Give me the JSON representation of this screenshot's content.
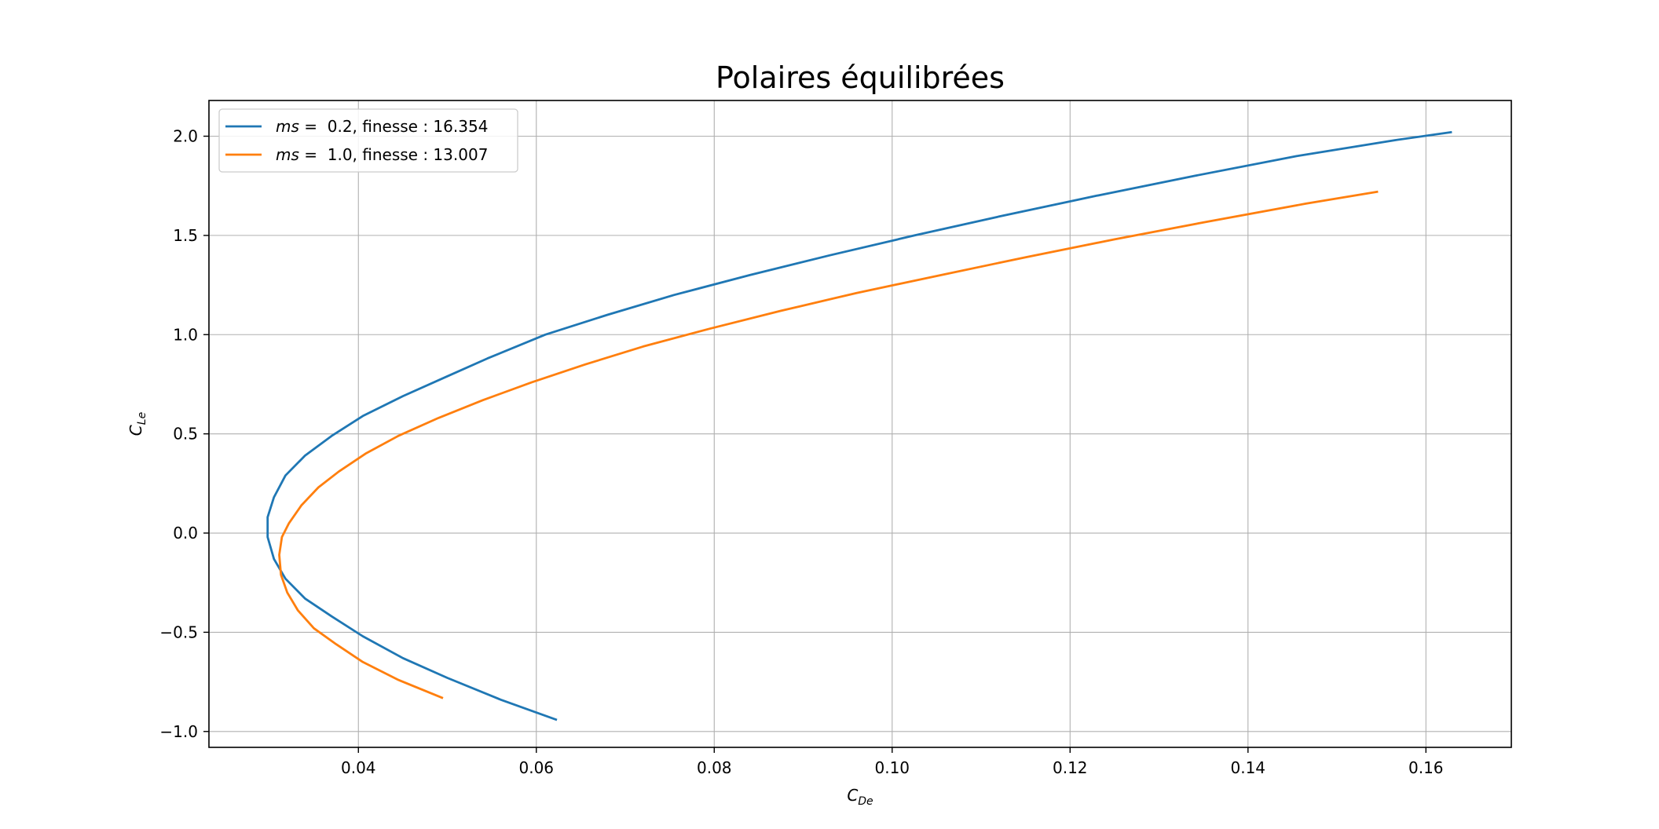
{
  "chart_data": {
    "type": "line",
    "title": "Polaires équilibrées",
    "xlabel_main": "C",
    "xlabel_sub": "De",
    "ylabel_main": "C",
    "ylabel_sub": "Le",
    "xlim": [
      0.0232,
      0.1696
    ],
    "ylim": [
      -1.08,
      2.18
    ],
    "xticks": [
      0.04,
      0.06,
      0.08,
      0.1,
      0.12,
      0.14,
      0.16
    ],
    "xtick_labels": [
      "0.04",
      "0.06",
      "0.08",
      "0.10",
      "0.12",
      "0.14",
      "0.16"
    ],
    "yticks": [
      -1.0,
      -0.5,
      0.0,
      0.5,
      1.0,
      1.5,
      2.0
    ],
    "ytick_labels": [
      "−1.0",
      "−0.5",
      "0.0",
      "0.5",
      "1.0",
      "1.5",
      "2.0"
    ],
    "grid": true,
    "legend_position": "top-left",
    "series": [
      {
        "name": "ms =  0.2, finesse : 16.354",
        "legend_var": "ms",
        "legend_rest": " =  0.2, finesse : 16.354",
        "color": "#1f77b4",
        "points": [
          [
            0.0622,
            -0.94
          ],
          [
            0.056,
            -0.84
          ],
          [
            0.05,
            -0.73
          ],
          [
            0.045,
            -0.63
          ],
          [
            0.0405,
            -0.52
          ],
          [
            0.037,
            -0.42
          ],
          [
            0.034,
            -0.33
          ],
          [
            0.0318,
            -0.23
          ],
          [
            0.0305,
            -0.13
          ],
          [
            0.0298,
            -0.02
          ],
          [
            0.0298,
            0.08
          ],
          [
            0.0305,
            0.18
          ],
          [
            0.0318,
            0.29
          ],
          [
            0.034,
            0.39
          ],
          [
            0.037,
            0.49
          ],
          [
            0.0405,
            0.59
          ],
          [
            0.045,
            0.69
          ],
          [
            0.05,
            0.79
          ],
          [
            0.0545,
            0.88
          ],
          [
            0.061,
            1.0
          ],
          [
            0.068,
            1.1
          ],
          [
            0.0755,
            1.2
          ],
          [
            0.084,
            1.3
          ],
          [
            0.093,
            1.4
          ],
          [
            0.1025,
            1.5
          ],
          [
            0.1125,
            1.6
          ],
          [
            0.123,
            1.7
          ],
          [
            0.134,
            1.8
          ],
          [
            0.1455,
            1.9
          ],
          [
            0.1565,
            1.98
          ],
          [
            0.1628,
            2.02
          ]
        ]
      },
      {
        "name": "ms =  1.0, finesse : 13.007",
        "legend_var": "ms",
        "legend_rest": " =  1.0, finesse : 13.007",
        "color": "#ff7f0e",
        "points": [
          [
            0.0494,
            -0.83
          ],
          [
            0.0445,
            -0.74
          ],
          [
            0.0405,
            -0.65
          ],
          [
            0.0375,
            -0.56
          ],
          [
            0.035,
            -0.48
          ],
          [
            0.0332,
            -0.39
          ],
          [
            0.032,
            -0.3
          ],
          [
            0.0313,
            -0.21
          ],
          [
            0.0311,
            -0.11
          ],
          [
            0.0314,
            -0.02
          ],
          [
            0.0322,
            0.05
          ],
          [
            0.0336,
            0.14
          ],
          [
            0.0355,
            0.23
          ],
          [
            0.0378,
            0.31
          ],
          [
            0.0408,
            0.4
          ],
          [
            0.0445,
            0.49
          ],
          [
            0.049,
            0.58
          ],
          [
            0.054,
            0.67
          ],
          [
            0.0595,
            0.76
          ],
          [
            0.0655,
            0.85
          ],
          [
            0.072,
            0.94
          ],
          [
            0.0795,
            1.03
          ],
          [
            0.0875,
            1.12
          ],
          [
            0.096,
            1.21
          ],
          [
            0.1055,
            1.3
          ],
          [
            0.115,
            1.39
          ],
          [
            0.125,
            1.48
          ],
          [
            0.1355,
            1.57
          ],
          [
            0.1465,
            1.66
          ],
          [
            0.1545,
            1.72
          ]
        ]
      }
    ]
  }
}
